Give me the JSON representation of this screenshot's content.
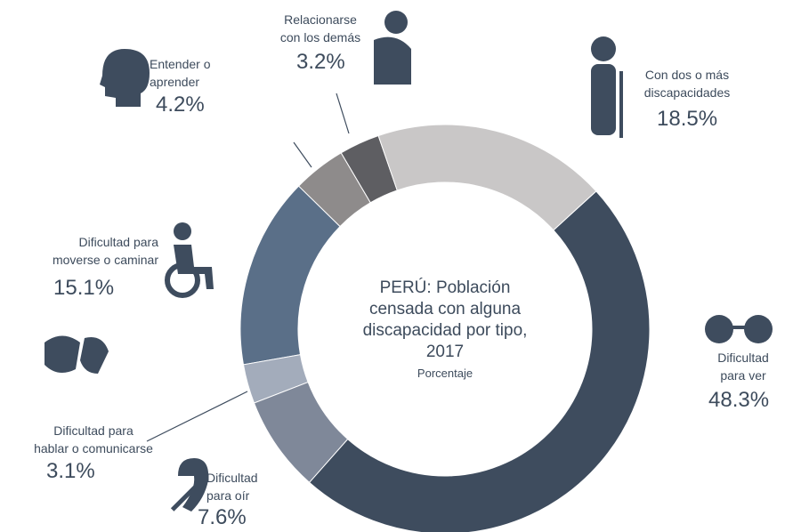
{
  "chart_data": {
    "type": "donut",
    "title": "PERÚ: Población\ncensada con alguna\ndiscapacidad por tipo,\n2017",
    "subtitle": "Porcentaje",
    "categories": [
      "Con dos o más\ndiscapacidades",
      "Dificultad\npara ver",
      "Dificultad\npara oír",
      "Dificultad para\nhablar o comunicarse",
      "Dificultad para\nmoverse o caminar",
      "Entender o\naprender",
      "Relacionarse\ncon los demás"
    ],
    "values": [
      18.5,
      48.3,
      7.6,
      3.1,
      15.1,
      4.2,
      3.2
    ],
    "value_labels": [
      "18.5%",
      "48.3%",
      "7.6%",
      "3.1%",
      "15.1%",
      "4.2%",
      "3.2%"
    ],
    "colors": [
      "#c9c7c7",
      "#3e4c5e",
      "#7f8899",
      "#a3acbb",
      "#5a6f88",
      "#8e8b8b",
      "#5e5e62"
    ]
  }
}
